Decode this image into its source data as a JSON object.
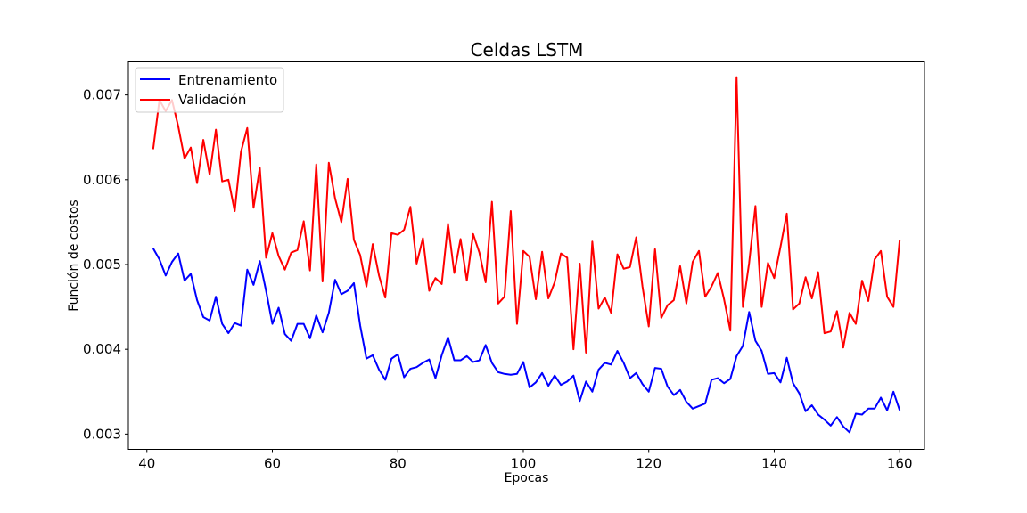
{
  "chart_data": {
    "type": "line",
    "title": "Celdas LSTM",
    "xlabel": "Epocas",
    "ylabel": "Función de costos",
    "xlim": [
      37.05,
      163.95
    ],
    "ylim": [
      0.00282,
      0.00739
    ],
    "xticks": [
      40,
      60,
      80,
      100,
      120,
      140,
      160
    ],
    "yticks": [
      0.003,
      0.004,
      0.005,
      0.006,
      0.007
    ],
    "ytick_labels": [
      "0.003",
      "0.004",
      "0.005",
      "0.006",
      "0.007"
    ],
    "legend_position": "top-left",
    "grid": false,
    "x": [
      41,
      42,
      43,
      44,
      45,
      46,
      47,
      48,
      49,
      50,
      51,
      52,
      53,
      54,
      55,
      56,
      57,
      58,
      59,
      60,
      61,
      62,
      63,
      64,
      65,
      66,
      67,
      68,
      69,
      70,
      71,
      72,
      73,
      74,
      75,
      76,
      77,
      78,
      79,
      80,
      81,
      82,
      83,
      84,
      85,
      86,
      87,
      88,
      89,
      90,
      91,
      92,
      93,
      94,
      95,
      96,
      97,
      98,
      99,
      100,
      101,
      102,
      103,
      104,
      105,
      106,
      107,
      108,
      109,
      110,
      111,
      112,
      113,
      114,
      115,
      116,
      117,
      118,
      119,
      120,
      121,
      122,
      123,
      124,
      125,
      126,
      127,
      128,
      129,
      130,
      131,
      132,
      133,
      134,
      135,
      136,
      137,
      138,
      139,
      140,
      141,
      142,
      143,
      144,
      145,
      146,
      147,
      148,
      149,
      150,
      151,
      152,
      153,
      154,
      155,
      156,
      157,
      158,
      159,
      160
    ],
    "series": [
      {
        "name": "Entrenamiento",
        "color": "#0000ff",
        "values": [
          0.00519,
          0.00506,
          0.00487,
          0.00503,
          0.00513,
          0.00481,
          0.00489,
          0.00458,
          0.00438,
          0.00434,
          0.00462,
          0.0043,
          0.00419,
          0.00431,
          0.00428,
          0.00494,
          0.00476,
          0.00504,
          0.00469,
          0.0043,
          0.00449,
          0.00418,
          0.0041,
          0.0043,
          0.0043,
          0.00413,
          0.0044,
          0.0042,
          0.00443,
          0.00482,
          0.00465,
          0.00469,
          0.00478,
          0.00428,
          0.00389,
          0.00393,
          0.00376,
          0.00364,
          0.00389,
          0.00394,
          0.00367,
          0.00377,
          0.00379,
          0.00384,
          0.00388,
          0.00366,
          0.00393,
          0.00414,
          0.00387,
          0.00387,
          0.00392,
          0.00385,
          0.00387,
          0.00405,
          0.00384,
          0.00373,
          0.00371,
          0.0037,
          0.00371,
          0.00385,
          0.00355,
          0.00361,
          0.00372,
          0.00357,
          0.00369,
          0.00358,
          0.00362,
          0.00369,
          0.00339,
          0.00362,
          0.0035,
          0.00376,
          0.00384,
          0.00382,
          0.00398,
          0.00384,
          0.00366,
          0.00372,
          0.00359,
          0.0035,
          0.00378,
          0.00377,
          0.00356,
          0.00346,
          0.00352,
          0.00338,
          0.0033,
          0.00333,
          0.00336,
          0.00364,
          0.00366,
          0.0036,
          0.00365,
          0.00392,
          0.00404,
          0.00444,
          0.0041,
          0.00398,
          0.00371,
          0.00372,
          0.00361,
          0.0039,
          0.0036,
          0.00348,
          0.00327,
          0.00334,
          0.00323,
          0.00317,
          0.0031,
          0.0032,
          0.00309,
          0.00302,
          0.00324,
          0.00323,
          0.0033,
          0.0033,
          0.00343,
          0.00328,
          0.0035,
          0.00328
        ]
      },
      {
        "name": "Validación",
        "color": "#ff0000",
        "values": [
          0.00636,
          0.00694,
          0.00681,
          0.00694,
          0.00663,
          0.00625,
          0.00638,
          0.00596,
          0.00647,
          0.00606,
          0.00659,
          0.00598,
          0.006,
          0.00563,
          0.00633,
          0.00661,
          0.00567,
          0.00614,
          0.00508,
          0.00537,
          0.0051,
          0.00494,
          0.00514,
          0.00517,
          0.00551,
          0.00493,
          0.00618,
          0.0048,
          0.0062,
          0.00578,
          0.0055,
          0.00601,
          0.00529,
          0.00511,
          0.00474,
          0.00524,
          0.00487,
          0.00461,
          0.00537,
          0.00535,
          0.00541,
          0.00568,
          0.00501,
          0.00531,
          0.00469,
          0.00484,
          0.00477,
          0.00548,
          0.0049,
          0.0053,
          0.00481,
          0.00536,
          0.00514,
          0.00479,
          0.00574,
          0.00454,
          0.00462,
          0.00563,
          0.0043,
          0.00516,
          0.00509,
          0.00459,
          0.00515,
          0.0046,
          0.00479,
          0.00513,
          0.00508,
          0.004,
          0.00501,
          0.00396,
          0.00527,
          0.00448,
          0.00461,
          0.00443,
          0.00512,
          0.00495,
          0.00497,
          0.00532,
          0.00474,
          0.00427,
          0.00518,
          0.00437,
          0.00452,
          0.00458,
          0.00498,
          0.00454,
          0.00503,
          0.00516,
          0.00462,
          0.00474,
          0.0049,
          0.00459,
          0.00422,
          0.00721,
          0.0045,
          0.00502,
          0.00569,
          0.0045,
          0.00502,
          0.00484,
          0.00521,
          0.0056,
          0.00447,
          0.00454,
          0.00485,
          0.0046,
          0.00491,
          0.00419,
          0.00421,
          0.00445,
          0.00402,
          0.00443,
          0.0043,
          0.00481,
          0.00457,
          0.00506,
          0.00516,
          0.00462,
          0.0045,
          0.00529
        ]
      }
    ]
  }
}
